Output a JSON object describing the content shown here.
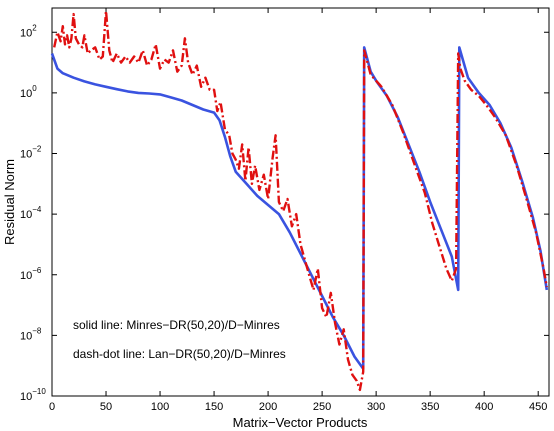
{
  "chart_data": {
    "type": "line",
    "title": "",
    "xlabel": "Matrix−Vector Products",
    "ylabel": "Residual Norm",
    "xlim": [
      0,
      460
    ],
    "ylim_log10": [
      -10,
      2.8
    ],
    "yscale": "log",
    "grid": false,
    "xticks": [
      0,
      50,
      100,
      150,
      200,
      250,
      300,
      350,
      400,
      450
    ],
    "xtick_labels": [
      "0",
      "50",
      "100",
      "150",
      "200",
      "250",
      "300",
      "350",
      "400",
      "450"
    ],
    "yticks_log10": [
      2,
      0,
      -2,
      -4,
      -6,
      -8,
      -10
    ],
    "ytick_bases": [
      "10",
      "10",
      "10",
      "10",
      "10",
      "10",
      "10"
    ],
    "ytick_exps": [
      "2",
      "0",
      "−2",
      "−4",
      "−6",
      "−8",
      "−10"
    ],
    "annotations": [
      "solid line: Minres−DR(50,20)/D−Minres",
      "dash-dot line: Lan−DR(50,20)/D−Minres"
    ],
    "series": [
      {
        "style": "solid",
        "color": "#3a53e0",
        "points_log10": [
          [
            0,
            1.3
          ],
          [
            5,
            0.8
          ],
          [
            10,
            0.65
          ],
          [
            20,
            0.5
          ],
          [
            30,
            0.38
          ],
          [
            40,
            0.28
          ],
          [
            50,
            0.2
          ],
          [
            60,
            0.12
          ],
          [
            70,
            0.05
          ],
          [
            80,
            0.0
          ],
          [
            90,
            -0.02
          ],
          [
            100,
            -0.05
          ],
          [
            110,
            -0.15
          ],
          [
            120,
            -0.25
          ],
          [
            130,
            -0.4
          ],
          [
            140,
            -0.55
          ],
          [
            150,
            -0.65
          ],
          [
            155,
            -0.9
          ],
          [
            160,
            -1.45
          ],
          [
            165,
            -2.1
          ],
          [
            170,
            -2.6
          ],
          [
            180,
            -3.0
          ],
          [
            190,
            -3.4
          ],
          [
            200,
            -3.7
          ],
          [
            210,
            -4.0
          ],
          [
            220,
            -4.6
          ],
          [
            230,
            -5.3
          ],
          [
            240,
            -6.0
          ],
          [
            250,
            -6.7
          ],
          [
            260,
            -7.4
          ],
          [
            270,
            -8.0
          ],
          [
            280,
            -8.7
          ],
          [
            288,
            -9.1
          ],
          [
            289,
            1.5
          ],
          [
            295,
            0.7
          ],
          [
            300,
            0.4
          ],
          [
            310,
            -0.1
          ],
          [
            320,
            -0.8
          ],
          [
            330,
            -1.7
          ],
          [
            340,
            -2.6
          ],
          [
            350,
            -3.6
          ],
          [
            360,
            -4.5
          ],
          [
            370,
            -5.4
          ],
          [
            376,
            -6.5
          ],
          [
            377,
            1.5
          ],
          [
            385,
            0.5
          ],
          [
            395,
            0.0
          ],
          [
            405,
            -0.4
          ],
          [
            415,
            -1.0
          ],
          [
            425,
            -1.8
          ],
          [
            435,
            -2.9
          ],
          [
            445,
            -4.1
          ],
          [
            452,
            -5.2
          ],
          [
            458,
            -6.5
          ]
        ]
      },
      {
        "style": "dash-dot",
        "color": "#e01010",
        "points_log10": [
          [
            2,
            1.5
          ],
          [
            5,
            2.0
          ],
          [
            8,
            1.7
          ],
          [
            10,
            2.2
          ],
          [
            12,
            1.6
          ],
          [
            14,
            1.9
          ],
          [
            16,
            1.5
          ],
          [
            18,
            1.8
          ],
          [
            20,
            2.6
          ],
          [
            22,
            1.8
          ],
          [
            25,
            1.6
          ],
          [
            28,
            1.5
          ],
          [
            30,
            1.9
          ],
          [
            33,
            1.3
          ],
          [
            36,
            1.4
          ],
          [
            40,
            1.5
          ],
          [
            44,
            1.1
          ],
          [
            47,
            1.2
          ],
          [
            50,
            2.7
          ],
          [
            53,
            1.4
          ],
          [
            56,
            1.0
          ],
          [
            60,
            1.3
          ],
          [
            64,
            1.0
          ],
          [
            68,
            1.2
          ],
          [
            72,
            1.0
          ],
          [
            76,
            1.2
          ],
          [
            80,
            1.0
          ],
          [
            84,
            1.4
          ],
          [
            88,
            0.9
          ],
          [
            92,
            1.1
          ],
          [
            96,
            1.6
          ],
          [
            100,
            0.8
          ],
          [
            104,
            1.1
          ],
          [
            108,
            1.0
          ],
          [
            112,
            1.4
          ],
          [
            116,
            0.7
          ],
          [
            120,
            0.9
          ],
          [
            123,
            1.8
          ],
          [
            126,
            1.0
          ],
          [
            130,
            0.6
          ],
          [
            134,
            0.9
          ],
          [
            138,
            0.2
          ],
          [
            142,
            0.5
          ],
          [
            146,
            0.1
          ],
          [
            150,
            0.1
          ],
          [
            153,
            -0.6
          ],
          [
            156,
            -0.3
          ],
          [
            160,
            -1.2
          ],
          [
            164,
            -1.4
          ],
          [
            167,
            -2.0
          ],
          [
            170,
            -2.2
          ],
          [
            173,
            -2.5
          ],
          [
            176,
            -1.7
          ],
          [
            179,
            -2.9
          ],
          [
            182,
            -1.8
          ],
          [
            185,
            -3.0
          ],
          [
            188,
            -2.4
          ],
          [
            192,
            -3.2
          ],
          [
            196,
            -2.7
          ],
          [
            200,
            -3.5
          ],
          [
            204,
            -2.2
          ],
          [
            207,
            -1.4
          ],
          [
            210,
            -3.6
          ],
          [
            214,
            -3.9
          ],
          [
            218,
            -3.5
          ],
          [
            222,
            -4.4
          ],
          [
            226,
            -4.0
          ],
          [
            230,
            -5.0
          ],
          [
            234,
            -5.5
          ],
          [
            238,
            -6.0
          ],
          [
            242,
            -6.5
          ],
          [
            246,
            -5.8
          ],
          [
            250,
            -7.1
          ],
          [
            254,
            -7.4
          ],
          [
            258,
            -6.6
          ],
          [
            262,
            -7.6
          ],
          [
            266,
            -8.3
          ],
          [
            270,
            -7.8
          ],
          [
            274,
            -8.8
          ],
          [
            278,
            -9.3
          ],
          [
            282,
            -9.5
          ],
          [
            285,
            -9.8
          ],
          [
            288,
            -9.2
          ],
          [
            289,
            1.4
          ],
          [
            295,
            0.6
          ],
          [
            305,
            0.2
          ],
          [
            315,
            -0.4
          ],
          [
            325,
            -1.3
          ],
          [
            335,
            -2.3
          ],
          [
            345,
            -3.3
          ],
          [
            352,
            -4.3
          ],
          [
            358,
            -5.0
          ],
          [
            365,
            -5.8
          ],
          [
            370,
            -6.2
          ],
          [
            374,
            -5.8
          ],
          [
            376,
            1.3
          ],
          [
            378,
            0.8
          ],
          [
            382,
            0.4
          ],
          [
            388,
            0.1
          ],
          [
            395,
            -0.1
          ],
          [
            402,
            -0.4
          ],
          [
            410,
            -0.8
          ],
          [
            420,
            -1.4
          ],
          [
            430,
            -2.4
          ],
          [
            440,
            -3.6
          ],
          [
            448,
            -4.6
          ],
          [
            455,
            -5.8
          ],
          [
            458,
            -6.4
          ]
        ]
      }
    ]
  }
}
